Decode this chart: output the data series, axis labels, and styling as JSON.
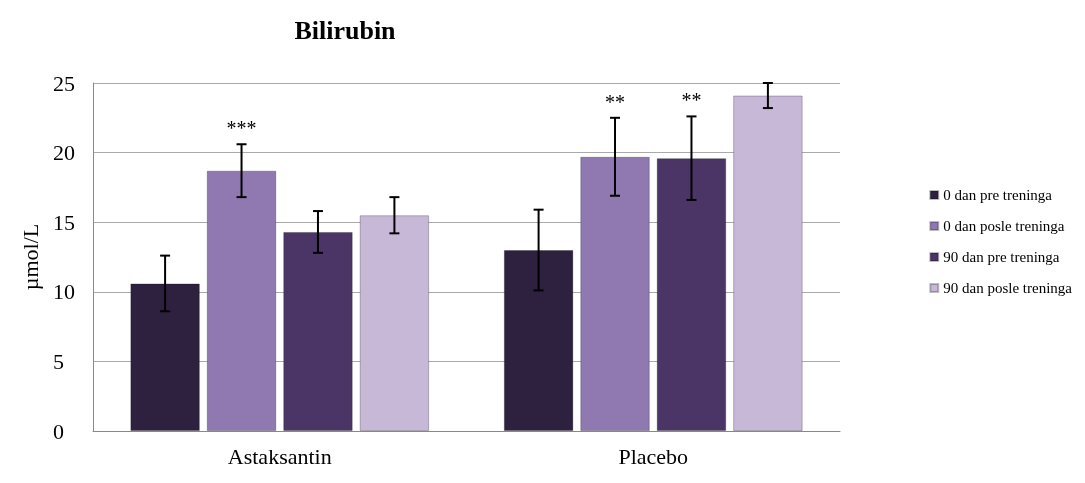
{
  "chart_data": {
    "type": "bar",
    "title": "Bilirubin",
    "ylabel": "µmol/L",
    "categories": [
      "Astaksantin",
      "Placebo"
    ],
    "series": [
      {
        "name": "0 dan pre treninga",
        "color": "#2e2140",
        "values": [
          10.6,
          13.0
        ],
        "errors": [
          2.0,
          2.9
        ]
      },
      {
        "name": "0 dan posle treninga",
        "color": "#9078b0",
        "values": [
          18.7,
          19.7
        ],
        "errors": [
          1.9,
          2.8
        ]
      },
      {
        "name": "90 dan pre treninga",
        "color": "#4a3566",
        "values": [
          14.3,
          19.6
        ],
        "errors": [
          1.5,
          3.0
        ]
      },
      {
        "name": "90 dan posle treninga",
        "color": "#c8b8d8",
        "values": [
          15.5,
          24.1
        ],
        "errors": [
          1.3,
          0.9
        ]
      }
    ],
    "annotations": [
      {
        "text": "***",
        "x": "Astaksantin",
        "y": 18.7
      },
      {
        "text": "**",
        "x": "Placebo",
        "y": 19.7
      },
      {
        "text": "**",
        "x": "Placebo",
        "y": 19.6
      }
    ],
    "ylim": [
      0,
      25
    ],
    "yticks": [
      0,
      5,
      10,
      15,
      20,
      25
    ],
    "grid": "y",
    "legend": "right"
  }
}
